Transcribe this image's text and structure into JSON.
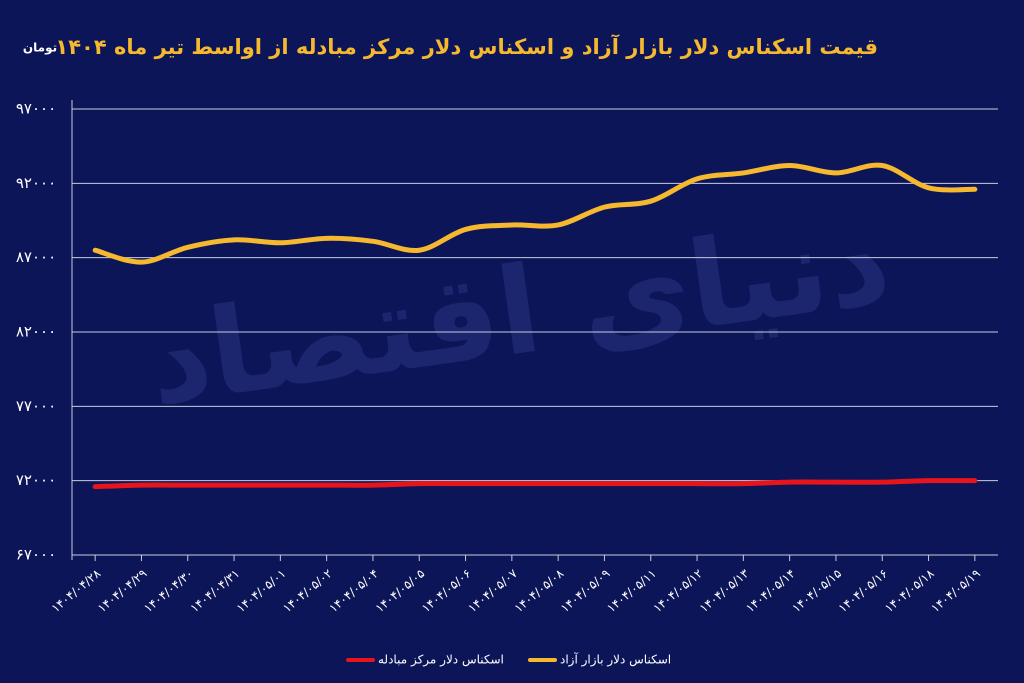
{
  "chart_data": {
    "type": "line",
    "title": "قیمت اسکناس دلار بازار آزاد و اسکناس دلار مرکز مبادله از اواسط تیر ماه ۱۴۰۴",
    "y_unit": "تومان",
    "watermark": "دنیای اقتصاد",
    "categories": [
      "۱۴۰۴/۰۴/۲۸",
      "۱۴۰۴/۰۴/۲۹",
      "۱۴۰۴/۰۴/۳۰",
      "۱۴۰۴/۰۴/۳۱",
      "۱۴۰۴/۰۵/۰۱",
      "۱۴۰۴/۰۵/۰۲",
      "۱۴۰۴/۰۵/۰۴",
      "۱۴۰۴/۰۵/۰۵",
      "۱۴۰۴/۰۵/۰۶",
      "۱۴۰۴/۰۵/۰۷",
      "۱۴۰۴/۰۵/۰۸",
      "۱۴۰۴/۰۵/۰۹",
      "۱۴۰۴/۰۵/۱۱",
      "۱۴۰۴/۰۵/۱۲",
      "۱۴۰۴/۰۵/۱۳",
      "۱۴۰۴/۰۵/۱۴",
      "۱۴۰۴/۰۵/۱۵",
      "۱۴۰۴/۰۵/۱۶",
      "۱۴۰۴/۰۵/۱۸",
      "۱۴۰۴/۰۵/۱۹"
    ],
    "series": [
      {
        "name": "اسکناس دلار مرکز مبادله",
        "color": "#e8141c",
        "values": [
          71600,
          71700,
          71700,
          71700,
          71700,
          71700,
          71700,
          71800,
          71800,
          71800,
          71800,
          71800,
          71800,
          71800,
          71800,
          71900,
          71900,
          71900,
          72000,
          72000
        ]
      },
      {
        "name": "اسکناس دلار بازار آزاد",
        "color": "#f5b82e",
        "values": [
          87500,
          86700,
          87700,
          88200,
          88000,
          88300,
          88100,
          87500,
          88900,
          89200,
          89200,
          90400,
          90800,
          92300,
          92700,
          93200,
          92700,
          93200,
          91700,
          91600
        ]
      }
    ],
    "ylim": [
      67000,
      97000
    ],
    "yticks": [
      {
        "value": 67000,
        "label": "۶۷۰۰۰"
      },
      {
        "value": 72000,
        "label": "۷۲۰۰۰"
      },
      {
        "value": 77000,
        "label": "۷۷۰۰۰"
      },
      {
        "value": 82000,
        "label": "۸۲۰۰۰"
      },
      {
        "value": 87000,
        "label": "۸۷۰۰۰"
      },
      {
        "value": 92000,
        "label": "۹۲۰۰۰"
      },
      {
        "value": 97000,
        "label": "۹۷۰۰۰"
      }
    ],
    "grid": true
  }
}
